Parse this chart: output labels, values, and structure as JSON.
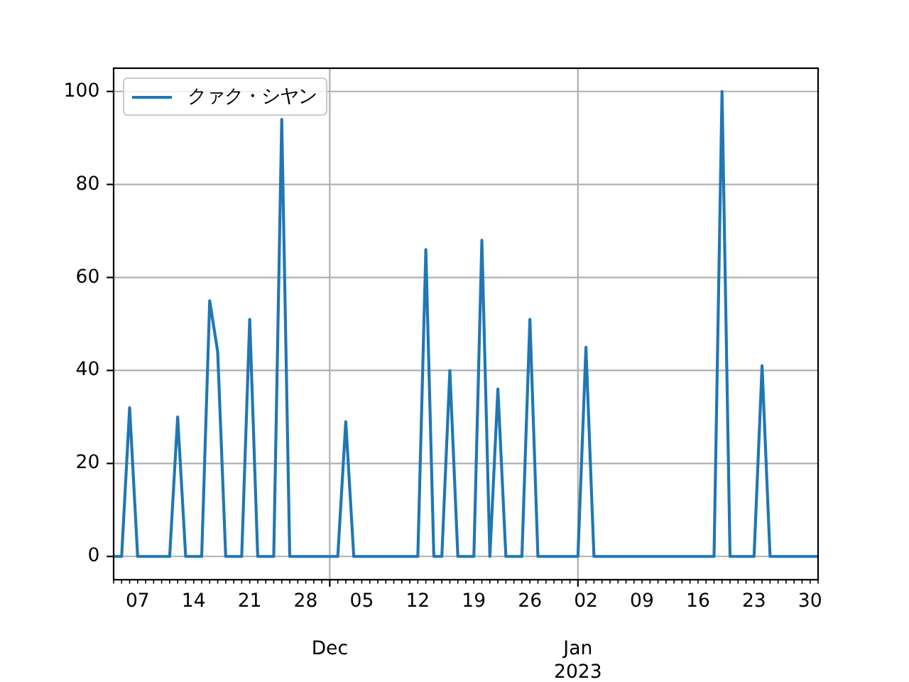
{
  "chart_data": {
    "type": "line",
    "x": [
      "2022-11-04",
      "2022-11-05",
      "2022-11-06",
      "2022-11-07",
      "2022-11-08",
      "2022-11-09",
      "2022-11-10",
      "2022-11-11",
      "2022-11-12",
      "2022-11-13",
      "2022-11-14",
      "2022-11-15",
      "2022-11-16",
      "2022-11-17",
      "2022-11-18",
      "2022-11-19",
      "2022-11-20",
      "2022-11-21",
      "2022-11-22",
      "2022-11-23",
      "2022-11-24",
      "2022-11-25",
      "2022-11-26",
      "2022-11-27",
      "2022-11-28",
      "2022-11-29",
      "2022-11-30",
      "2022-12-01",
      "2022-12-02",
      "2022-12-03",
      "2022-12-04",
      "2022-12-05",
      "2022-12-06",
      "2022-12-07",
      "2022-12-08",
      "2022-12-09",
      "2022-12-10",
      "2022-12-11",
      "2022-12-12",
      "2022-12-13",
      "2022-12-14",
      "2022-12-15",
      "2022-12-16",
      "2022-12-17",
      "2022-12-18",
      "2022-12-19",
      "2022-12-20",
      "2022-12-21",
      "2022-12-22",
      "2022-12-23",
      "2022-12-24",
      "2022-12-25",
      "2022-12-26",
      "2022-12-27",
      "2022-12-28",
      "2022-12-29",
      "2022-12-30",
      "2022-12-31",
      "2023-01-01",
      "2023-01-02",
      "2023-01-03",
      "2023-01-04",
      "2023-01-05",
      "2023-01-06",
      "2023-01-07",
      "2023-01-08",
      "2023-01-09",
      "2023-01-10",
      "2023-01-11",
      "2023-01-12",
      "2023-01-13",
      "2023-01-14",
      "2023-01-15",
      "2023-01-16",
      "2023-01-17",
      "2023-01-18",
      "2023-01-19",
      "2023-01-20",
      "2023-01-21",
      "2023-01-22",
      "2023-01-23",
      "2023-01-24",
      "2023-01-25",
      "2023-01-26",
      "2023-01-27",
      "2023-01-28",
      "2023-01-29",
      "2023-01-30",
      "2023-01-31"
    ],
    "series": [
      {
        "name": "クァク・シヤン",
        "color": "#1f77b4",
        "values": [
          0,
          0,
          32,
          0,
          0,
          0,
          0,
          0,
          30,
          0,
          0,
          0,
          55,
          44,
          0,
          0,
          0,
          51,
          0,
          0,
          0,
          94,
          0,
          0,
          0,
          0,
          0,
          0,
          0,
          29,
          0,
          0,
          0,
          0,
          0,
          0,
          0,
          0,
          0,
          66,
          0,
          0,
          40,
          0,
          0,
          0,
          68,
          0,
          36,
          0,
          0,
          0,
          51,
          0,
          0,
          0,
          0,
          0,
          0,
          45,
          0,
          0,
          0,
          0,
          0,
          0,
          0,
          0,
          0,
          0,
          0,
          0,
          0,
          0,
          0,
          0,
          100,
          0,
          0,
          0,
          0,
          41,
          0,
          0,
          0,
          0,
          0,
          0,
          0
        ]
      }
    ],
    "xlim": [
      "2022-11-04",
      "2023-01-31"
    ],
    "ylim": [
      -5,
      105
    ],
    "xticks": [
      {
        "value": "2022-11-04",
        "label": null
      },
      {
        "value": "2022-11-05",
        "label": null
      },
      {
        "value": "2022-11-06",
        "label": null
      },
      {
        "value": "2022-11-07",
        "label": "07"
      },
      {
        "value": "2022-11-08",
        "label": null
      },
      {
        "value": "2022-11-09",
        "label": null
      },
      {
        "value": "2022-11-10",
        "label": null
      },
      {
        "value": "2022-11-11",
        "label": null
      },
      {
        "value": "2022-11-12",
        "label": null
      },
      {
        "value": "2022-11-13",
        "label": null
      },
      {
        "value": "2022-11-14",
        "label": "14"
      },
      {
        "value": "2022-11-15",
        "label": null
      },
      {
        "value": "2022-11-16",
        "label": null
      },
      {
        "value": "2022-11-17",
        "label": null
      },
      {
        "value": "2022-11-18",
        "label": null
      },
      {
        "value": "2022-11-19",
        "label": null
      },
      {
        "value": "2022-11-20",
        "label": null
      },
      {
        "value": "2022-11-21",
        "label": "21"
      },
      {
        "value": "2022-11-22",
        "label": null
      },
      {
        "value": "2022-11-23",
        "label": null
      },
      {
        "value": "2022-11-24",
        "label": null
      },
      {
        "value": "2022-11-25",
        "label": null
      },
      {
        "value": "2022-11-26",
        "label": null
      },
      {
        "value": "2022-11-27",
        "label": null
      },
      {
        "value": "2022-11-28",
        "label": "28"
      },
      {
        "value": "2022-11-29",
        "label": null
      },
      {
        "value": "2022-11-30",
        "label": null
      },
      {
        "value": "2022-12-01",
        "label": null
      },
      {
        "value": "2022-12-02",
        "label": null
      },
      {
        "value": "2022-12-03",
        "label": null
      },
      {
        "value": "2022-12-04",
        "label": null
      },
      {
        "value": "2022-12-05",
        "label": "05"
      },
      {
        "value": "2022-12-06",
        "label": null
      },
      {
        "value": "2022-12-07",
        "label": null
      },
      {
        "value": "2022-12-08",
        "label": null
      },
      {
        "value": "2022-12-09",
        "label": null
      },
      {
        "value": "2022-12-10",
        "label": null
      },
      {
        "value": "2022-12-11",
        "label": null
      },
      {
        "value": "2022-12-12",
        "label": "12"
      },
      {
        "value": "2022-12-13",
        "label": null
      },
      {
        "value": "2022-12-14",
        "label": null
      },
      {
        "value": "2022-12-15",
        "label": null
      },
      {
        "value": "2022-12-16",
        "label": null
      },
      {
        "value": "2022-12-17",
        "label": null
      },
      {
        "value": "2022-12-18",
        "label": null
      },
      {
        "value": "2022-12-19",
        "label": "19"
      },
      {
        "value": "2022-12-20",
        "label": null
      },
      {
        "value": "2022-12-21",
        "label": null
      },
      {
        "value": "2022-12-22",
        "label": null
      },
      {
        "value": "2022-12-23",
        "label": null
      },
      {
        "value": "2022-12-24",
        "label": null
      },
      {
        "value": "2022-12-25",
        "label": null
      },
      {
        "value": "2022-12-26",
        "label": "26"
      },
      {
        "value": "2022-12-27",
        "label": null
      },
      {
        "value": "2022-12-28",
        "label": null
      },
      {
        "value": "2022-12-29",
        "label": null
      },
      {
        "value": "2022-12-30",
        "label": null
      },
      {
        "value": "2022-12-31",
        "label": null
      },
      {
        "value": "2023-01-01",
        "label": null
      },
      {
        "value": "2023-01-02",
        "label": "02"
      },
      {
        "value": "2023-01-03",
        "label": null
      },
      {
        "value": "2023-01-04",
        "label": null
      },
      {
        "value": "2023-01-05",
        "label": null
      },
      {
        "value": "2023-01-06",
        "label": null
      },
      {
        "value": "2023-01-07",
        "label": null
      },
      {
        "value": "2023-01-08",
        "label": null
      },
      {
        "value": "2023-01-09",
        "label": "09"
      },
      {
        "value": "2023-01-10",
        "label": null
      },
      {
        "value": "2023-01-11",
        "label": null
      },
      {
        "value": "2023-01-12",
        "label": null
      },
      {
        "value": "2023-01-13",
        "label": null
      },
      {
        "value": "2023-01-14",
        "label": null
      },
      {
        "value": "2023-01-15",
        "label": null
      },
      {
        "value": "2023-01-16",
        "label": "16"
      },
      {
        "value": "2023-01-17",
        "label": null
      },
      {
        "value": "2023-01-18",
        "label": null
      },
      {
        "value": "2023-01-19",
        "label": null
      },
      {
        "value": "2023-01-20",
        "label": null
      },
      {
        "value": "2023-01-21",
        "label": null
      },
      {
        "value": "2023-01-22",
        "label": null
      },
      {
        "value": "2023-01-23",
        "label": "23"
      },
      {
        "value": "2023-01-24",
        "label": null
      },
      {
        "value": "2023-01-25",
        "label": null
      },
      {
        "value": "2023-01-26",
        "label": null
      },
      {
        "value": "2023-01-27",
        "label": null
      },
      {
        "value": "2023-01-28",
        "label": null
      },
      {
        "value": "2023-01-29",
        "label": null
      },
      {
        "value": "2023-01-30",
        "label": "30"
      },
      {
        "value": "2023-01-31",
        "label": null
      }
    ],
    "yticks": [
      0,
      20,
      40,
      60,
      80,
      100
    ],
    "annotations": [
      "Dec",
      "Jan\n2023"
    ],
    "grid": true,
    "legend": "top left",
    "line_style": "solid"
  }
}
